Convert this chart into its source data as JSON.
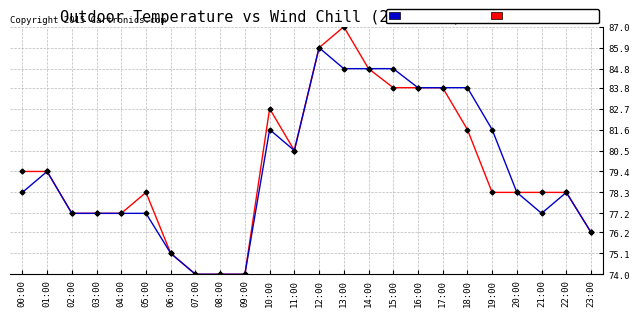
{
  "title": "Outdoor Temperature vs Wind Chill (24 Hours)  20150907",
  "copyright": "Copyright 2015 Cartronics.com",
  "hours": [
    "00:00",
    "01:00",
    "02:00",
    "03:00",
    "04:00",
    "05:00",
    "06:00",
    "07:00",
    "08:00",
    "09:00",
    "10:00",
    "11:00",
    "12:00",
    "13:00",
    "14:00",
    "15:00",
    "16:00",
    "17:00",
    "18:00",
    "19:00",
    "20:00",
    "21:00",
    "22:00",
    "23:00"
  ],
  "temperature": [
    79.4,
    79.4,
    77.2,
    77.2,
    77.2,
    78.3,
    75.1,
    74.0,
    74.0,
    74.0,
    82.7,
    80.5,
    85.9,
    87.0,
    84.8,
    83.8,
    83.8,
    83.8,
    81.6,
    78.3,
    78.3,
    78.3,
    78.3,
    76.2
  ],
  "wind_chill": [
    78.3,
    79.4,
    77.2,
    77.2,
    77.2,
    77.2,
    75.1,
    74.0,
    74.0,
    74.0,
    81.6,
    80.5,
    85.9,
    84.8,
    84.8,
    84.8,
    83.8,
    83.8,
    83.8,
    81.6,
    78.3,
    77.2,
    78.3,
    76.2
  ],
  "temp_color": "#ff0000",
  "wind_chill_color": "#0000cc",
  "ylim": [
    74.0,
    87.0
  ],
  "yticks": [
    74.0,
    75.1,
    76.2,
    77.2,
    78.3,
    79.4,
    80.5,
    81.6,
    82.7,
    83.8,
    84.8,
    85.9,
    87.0
  ],
  "bg_color": "#ffffff",
  "grid_color": "#aaaaaa",
  "title_fontsize": 11,
  "legend_wind_chill_bg": "#0000cc",
  "legend_temp_bg": "#ff0000"
}
